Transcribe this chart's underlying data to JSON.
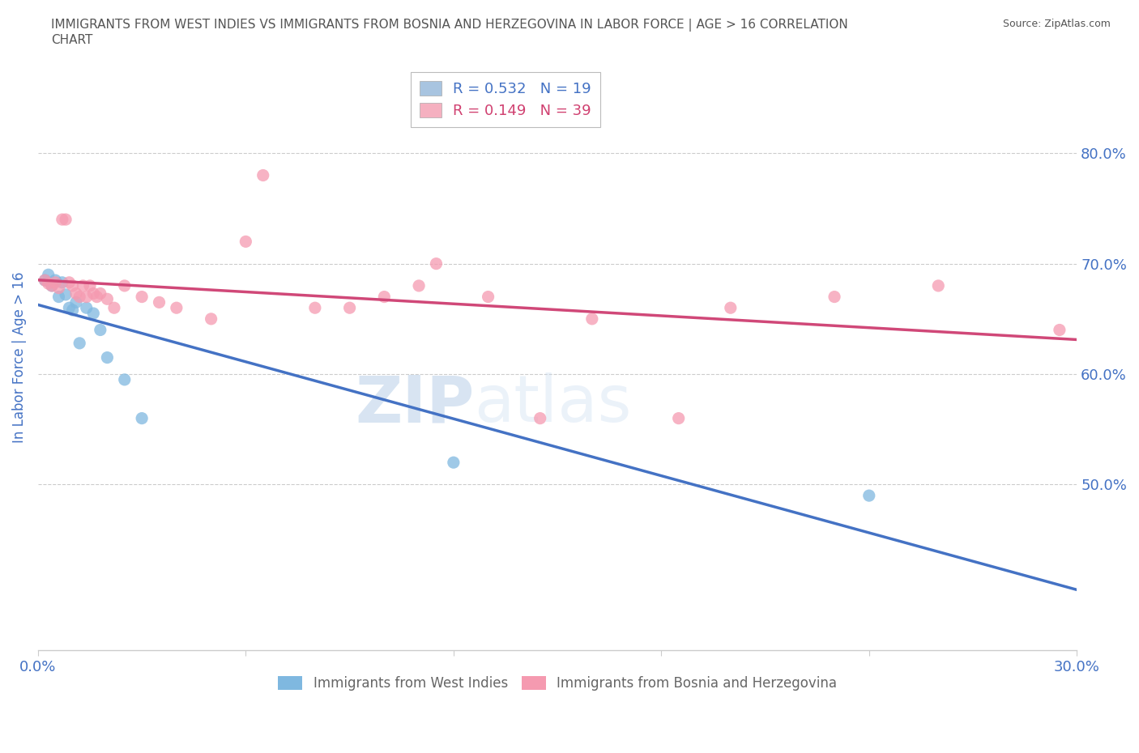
{
  "title_line1": "IMMIGRANTS FROM WEST INDIES VS IMMIGRANTS FROM BOSNIA AND HERZEGOVINA IN LABOR FORCE | AGE > 16 CORRELATION",
  "title_line2": "CHART",
  "source_text": "Source: ZipAtlas.com",
  "ylabel": "In Labor Force | Age > 16",
  "xlim": [
    0.0,
    0.3
  ],
  "ylim": [
    0.35,
    0.88
  ],
  "ytick_labels": [
    "50.0%",
    "60.0%",
    "70.0%",
    "80.0%"
  ],
  "ytick_values": [
    0.5,
    0.6,
    0.7,
    0.8
  ],
  "xtick_labels": [
    "0.0%",
    "",
    "",
    "",
    "",
    "30.0%"
  ],
  "xtick_values": [
    0.0,
    0.06,
    0.12,
    0.18,
    0.24,
    0.3
  ],
  "watermark_zip": "ZIP",
  "watermark_atlas": "atlas",
  "legend_items": [
    {
      "label": "R = 0.532   N = 19",
      "box_color": "#a8c4e0",
      "text_color": "#4472c4"
    },
    {
      "label": "R = 0.149   N = 39",
      "box_color": "#f5b0c0",
      "text_color": "#d04070"
    }
  ],
  "west_indies_x": [
    0.002,
    0.003,
    0.004,
    0.005,
    0.006,
    0.007,
    0.008,
    0.009,
    0.01,
    0.011,
    0.012,
    0.014,
    0.016,
    0.018,
    0.02,
    0.025,
    0.03,
    0.12,
    0.24
  ],
  "west_indies_y": [
    0.685,
    0.69,
    0.68,
    0.685,
    0.67,
    0.683,
    0.672,
    0.66,
    0.658,
    0.665,
    0.628,
    0.66,
    0.655,
    0.64,
    0.615,
    0.595,
    0.56,
    0.52,
    0.49
  ],
  "bosnia_x": [
    0.002,
    0.003,
    0.004,
    0.005,
    0.006,
    0.007,
    0.008,
    0.009,
    0.01,
    0.011,
    0.012,
    0.013,
    0.014,
    0.015,
    0.016,
    0.017,
    0.018,
    0.02,
    0.022,
    0.025,
    0.03,
    0.035,
    0.04,
    0.05,
    0.06,
    0.065,
    0.08,
    0.09,
    0.1,
    0.11,
    0.115,
    0.13,
    0.145,
    0.16,
    0.185,
    0.2,
    0.23,
    0.26,
    0.295
  ],
  "bosnia_y": [
    0.685,
    0.682,
    0.68,
    0.683,
    0.678,
    0.74,
    0.74,
    0.683,
    0.68,
    0.673,
    0.67,
    0.68,
    0.67,
    0.68,
    0.673,
    0.67,
    0.673,
    0.668,
    0.66,
    0.68,
    0.67,
    0.665,
    0.66,
    0.65,
    0.72,
    0.78,
    0.66,
    0.66,
    0.67,
    0.68,
    0.7,
    0.67,
    0.56,
    0.65,
    0.56,
    0.66,
    0.67,
    0.68,
    0.64
  ],
  "wi_color": "#7fb8e0",
  "bh_color": "#f59ab0",
  "wi_line_color": "#4472c4",
  "bh_line_color": "#d04878",
  "background_color": "#ffffff",
  "grid_color": "#cccccc",
  "title_color": "#555555",
  "axis_label_color": "#4472c4",
  "tick_label_color": "#4472c4",
  "bottom_legend_text_color": "#666666"
}
